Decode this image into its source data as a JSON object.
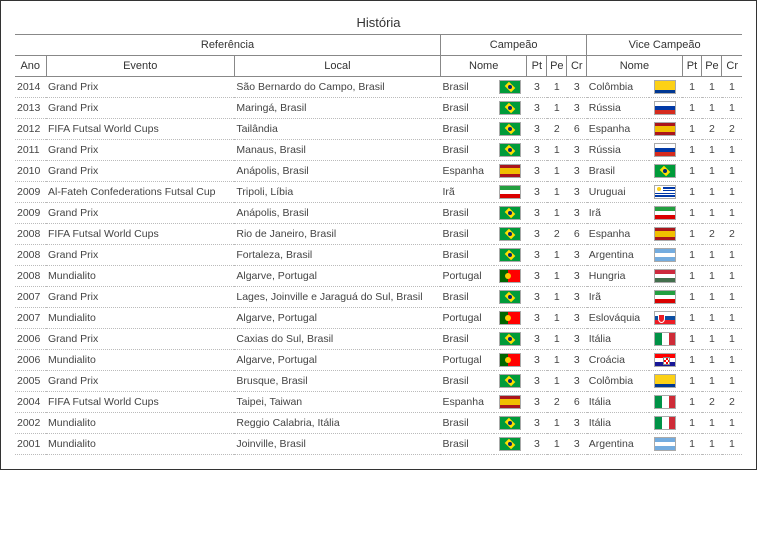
{
  "title": "História",
  "headers": {
    "group_referencia": "Referência",
    "group_campeao": "Campeão",
    "group_vice": "Vice Campeão",
    "ano": "Ano",
    "evento": "Evento",
    "local": "Local",
    "nome": "Nome",
    "pt": "Pt",
    "pe": "Pe",
    "cr": "Cr"
  },
  "flags": {
    "Brasil": {
      "type": "brasil",
      "bg": "#009b3a"
    },
    "Colômbia": {
      "type": "h3",
      "c": [
        "#fcd116",
        "#fcd116",
        "#003893",
        "#ce1126"
      ],
      "h": [
        0,
        50,
        75,
        100
      ]
    },
    "Rússia": {
      "type": "h3eq",
      "c": [
        "#ffffff",
        "#0039a6",
        "#d52b1e"
      ]
    },
    "Espanha": {
      "type": "h3",
      "c": [
        "#aa151b",
        "#f1bf00",
        "#aa151b"
      ],
      "h": [
        0,
        25,
        75,
        100
      ]
    },
    "Irã": {
      "type": "h3eq",
      "c": [
        "#239f40",
        "#ffffff",
        "#da0000"
      ]
    },
    "Uruguai": {
      "type": "uruguai"
    },
    "Portugal": {
      "type": "portugal"
    },
    "Argentina": {
      "type": "h3eq",
      "c": [
        "#74acdf",
        "#ffffff",
        "#74acdf"
      ]
    },
    "Hungria": {
      "type": "h3eq",
      "c": [
        "#cd2a3e",
        "#ffffff",
        "#436f4d"
      ]
    },
    "Eslováquia": {
      "type": "eslovaquia"
    },
    "Itália": {
      "type": "v3eq",
      "c": [
        "#009246",
        "#ffffff",
        "#ce2b37"
      ]
    },
    "Croácia": {
      "type": "croacia"
    },
    "Tailândia": {
      "type": "plain",
      "bg": "#a51931"
    }
  },
  "rows": [
    {
      "ano": "2014",
      "evento": "Grand Prix",
      "local": "São Bernardo do Campo, Brasil",
      "c_nome": "Brasil",
      "c_pt": "3",
      "c_pe": "1",
      "c_cr": "3",
      "v_nome": "Colômbia",
      "v_pt": "1",
      "v_pe": "1",
      "v_cr": "1"
    },
    {
      "ano": "2013",
      "evento": "Grand Prix",
      "local": "Maringá, Brasil",
      "c_nome": "Brasil",
      "c_pt": "3",
      "c_pe": "1",
      "c_cr": "3",
      "v_nome": "Rússia",
      "v_pt": "1",
      "v_pe": "1",
      "v_cr": "1"
    },
    {
      "ano": "2012",
      "evento": "FIFA Futsal World Cups",
      "local": "Tailândia",
      "c_nome": "Brasil",
      "c_pt": "3",
      "c_pe": "2",
      "c_cr": "6",
      "v_nome": "Espanha",
      "v_pt": "1",
      "v_pe": "2",
      "v_cr": "2"
    },
    {
      "ano": "2011",
      "evento": "Grand Prix",
      "local": "Manaus, Brasil",
      "c_nome": "Brasil",
      "c_pt": "3",
      "c_pe": "1",
      "c_cr": "3",
      "v_nome": "Rússia",
      "v_pt": "1",
      "v_pe": "1",
      "v_cr": "1"
    },
    {
      "ano": "2010",
      "evento": "Grand Prix",
      "local": "Anápolis, Brasil",
      "c_nome": "Espanha",
      "c_pt": "3",
      "c_pe": "1",
      "c_cr": "3",
      "v_nome": "Brasil",
      "v_pt": "1",
      "v_pe": "1",
      "v_cr": "1"
    },
    {
      "ano": "2009",
      "evento": "Al-Fateh Confederations Futsal Cup",
      "local": "Tripoli, Líbia",
      "c_nome": "Irã",
      "c_pt": "3",
      "c_pe": "1",
      "c_cr": "3",
      "v_nome": "Uruguai",
      "v_pt": "1",
      "v_pe": "1",
      "v_cr": "1"
    },
    {
      "ano": "2009",
      "evento": "Grand Prix",
      "local": "Anápolis, Brasil",
      "c_nome": "Brasil",
      "c_pt": "3",
      "c_pe": "1",
      "c_cr": "3",
      "v_nome": "Irã",
      "v_pt": "1",
      "v_pe": "1",
      "v_cr": "1"
    },
    {
      "ano": "2008",
      "evento": "FIFA Futsal World Cups",
      "local": "Rio de Janeiro, Brasil",
      "c_nome": "Brasil",
      "c_pt": "3",
      "c_pe": "2",
      "c_cr": "6",
      "v_nome": "Espanha",
      "v_pt": "1",
      "v_pe": "2",
      "v_cr": "2"
    },
    {
      "ano": "2008",
      "evento": "Grand Prix",
      "local": "Fortaleza, Brasil",
      "c_nome": "Brasil",
      "c_pt": "3",
      "c_pe": "1",
      "c_cr": "3",
      "v_nome": "Argentina",
      "v_pt": "1",
      "v_pe": "1",
      "v_cr": "1"
    },
    {
      "ano": "2008",
      "evento": "Mundialito",
      "local": "Algarve, Portugal",
      "c_nome": "Portugal",
      "c_pt": "3",
      "c_pe": "1",
      "c_cr": "3",
      "v_nome": "Hungria",
      "v_pt": "1",
      "v_pe": "1",
      "v_cr": "1"
    },
    {
      "ano": "2007",
      "evento": "Grand Prix",
      "local": "Lages, Joinville e Jaraguá do Sul, Brasil",
      "c_nome": "Brasil",
      "c_pt": "3",
      "c_pe": "1",
      "c_cr": "3",
      "v_nome": "Irã",
      "v_pt": "1",
      "v_pe": "1",
      "v_cr": "1"
    },
    {
      "ano": "2007",
      "evento": "Mundialito",
      "local": "Algarve, Portugal",
      "c_nome": "Portugal",
      "c_pt": "3",
      "c_pe": "1",
      "c_cr": "3",
      "v_nome": "Eslováquia",
      "v_pt": "1",
      "v_pe": "1",
      "v_cr": "1"
    },
    {
      "ano": "2006",
      "evento": "Grand Prix",
      "local": "Caxias do Sul, Brasil",
      "c_nome": "Brasil",
      "c_pt": "3",
      "c_pe": "1",
      "c_cr": "3",
      "v_nome": "Itália",
      "v_pt": "1",
      "v_pe": "1",
      "v_cr": "1"
    },
    {
      "ano": "2006",
      "evento": "Mundialito",
      "local": "Algarve, Portugal",
      "c_nome": "Portugal",
      "c_pt": "3",
      "c_pe": "1",
      "c_cr": "3",
      "v_nome": "Croácia",
      "v_pt": "1",
      "v_pe": "1",
      "v_cr": "1"
    },
    {
      "ano": "2005",
      "evento": "Grand Prix",
      "local": "Brusque, Brasil",
      "c_nome": "Brasil",
      "c_pt": "3",
      "c_pe": "1",
      "c_cr": "3",
      "v_nome": "Colômbia",
      "v_pt": "1",
      "v_pe": "1",
      "v_cr": "1"
    },
    {
      "ano": "2004",
      "evento": "FIFA Futsal World Cups",
      "local": "Taipei, Taiwan",
      "c_nome": "Espanha",
      "c_pt": "3",
      "c_pe": "2",
      "c_cr": "6",
      "v_nome": "Itália",
      "v_pt": "1",
      "v_pe": "2",
      "v_cr": "2"
    },
    {
      "ano": "2002",
      "evento": "Mundialito",
      "local": "Reggio Calabria, Itália",
      "c_nome": "Brasil",
      "c_pt": "3",
      "c_pe": "1",
      "c_cr": "3",
      "v_nome": "Itália",
      "v_pt": "1",
      "v_pe": "1",
      "v_cr": "1"
    },
    {
      "ano": "2001",
      "evento": "Mundialito",
      "local": "Joinville, Brasil",
      "c_nome": "Brasil",
      "c_pt": "3",
      "c_pe": "1",
      "c_cr": "3",
      "v_nome": "Argentina",
      "v_pt": "1",
      "v_pe": "1",
      "v_cr": "1"
    }
  ]
}
